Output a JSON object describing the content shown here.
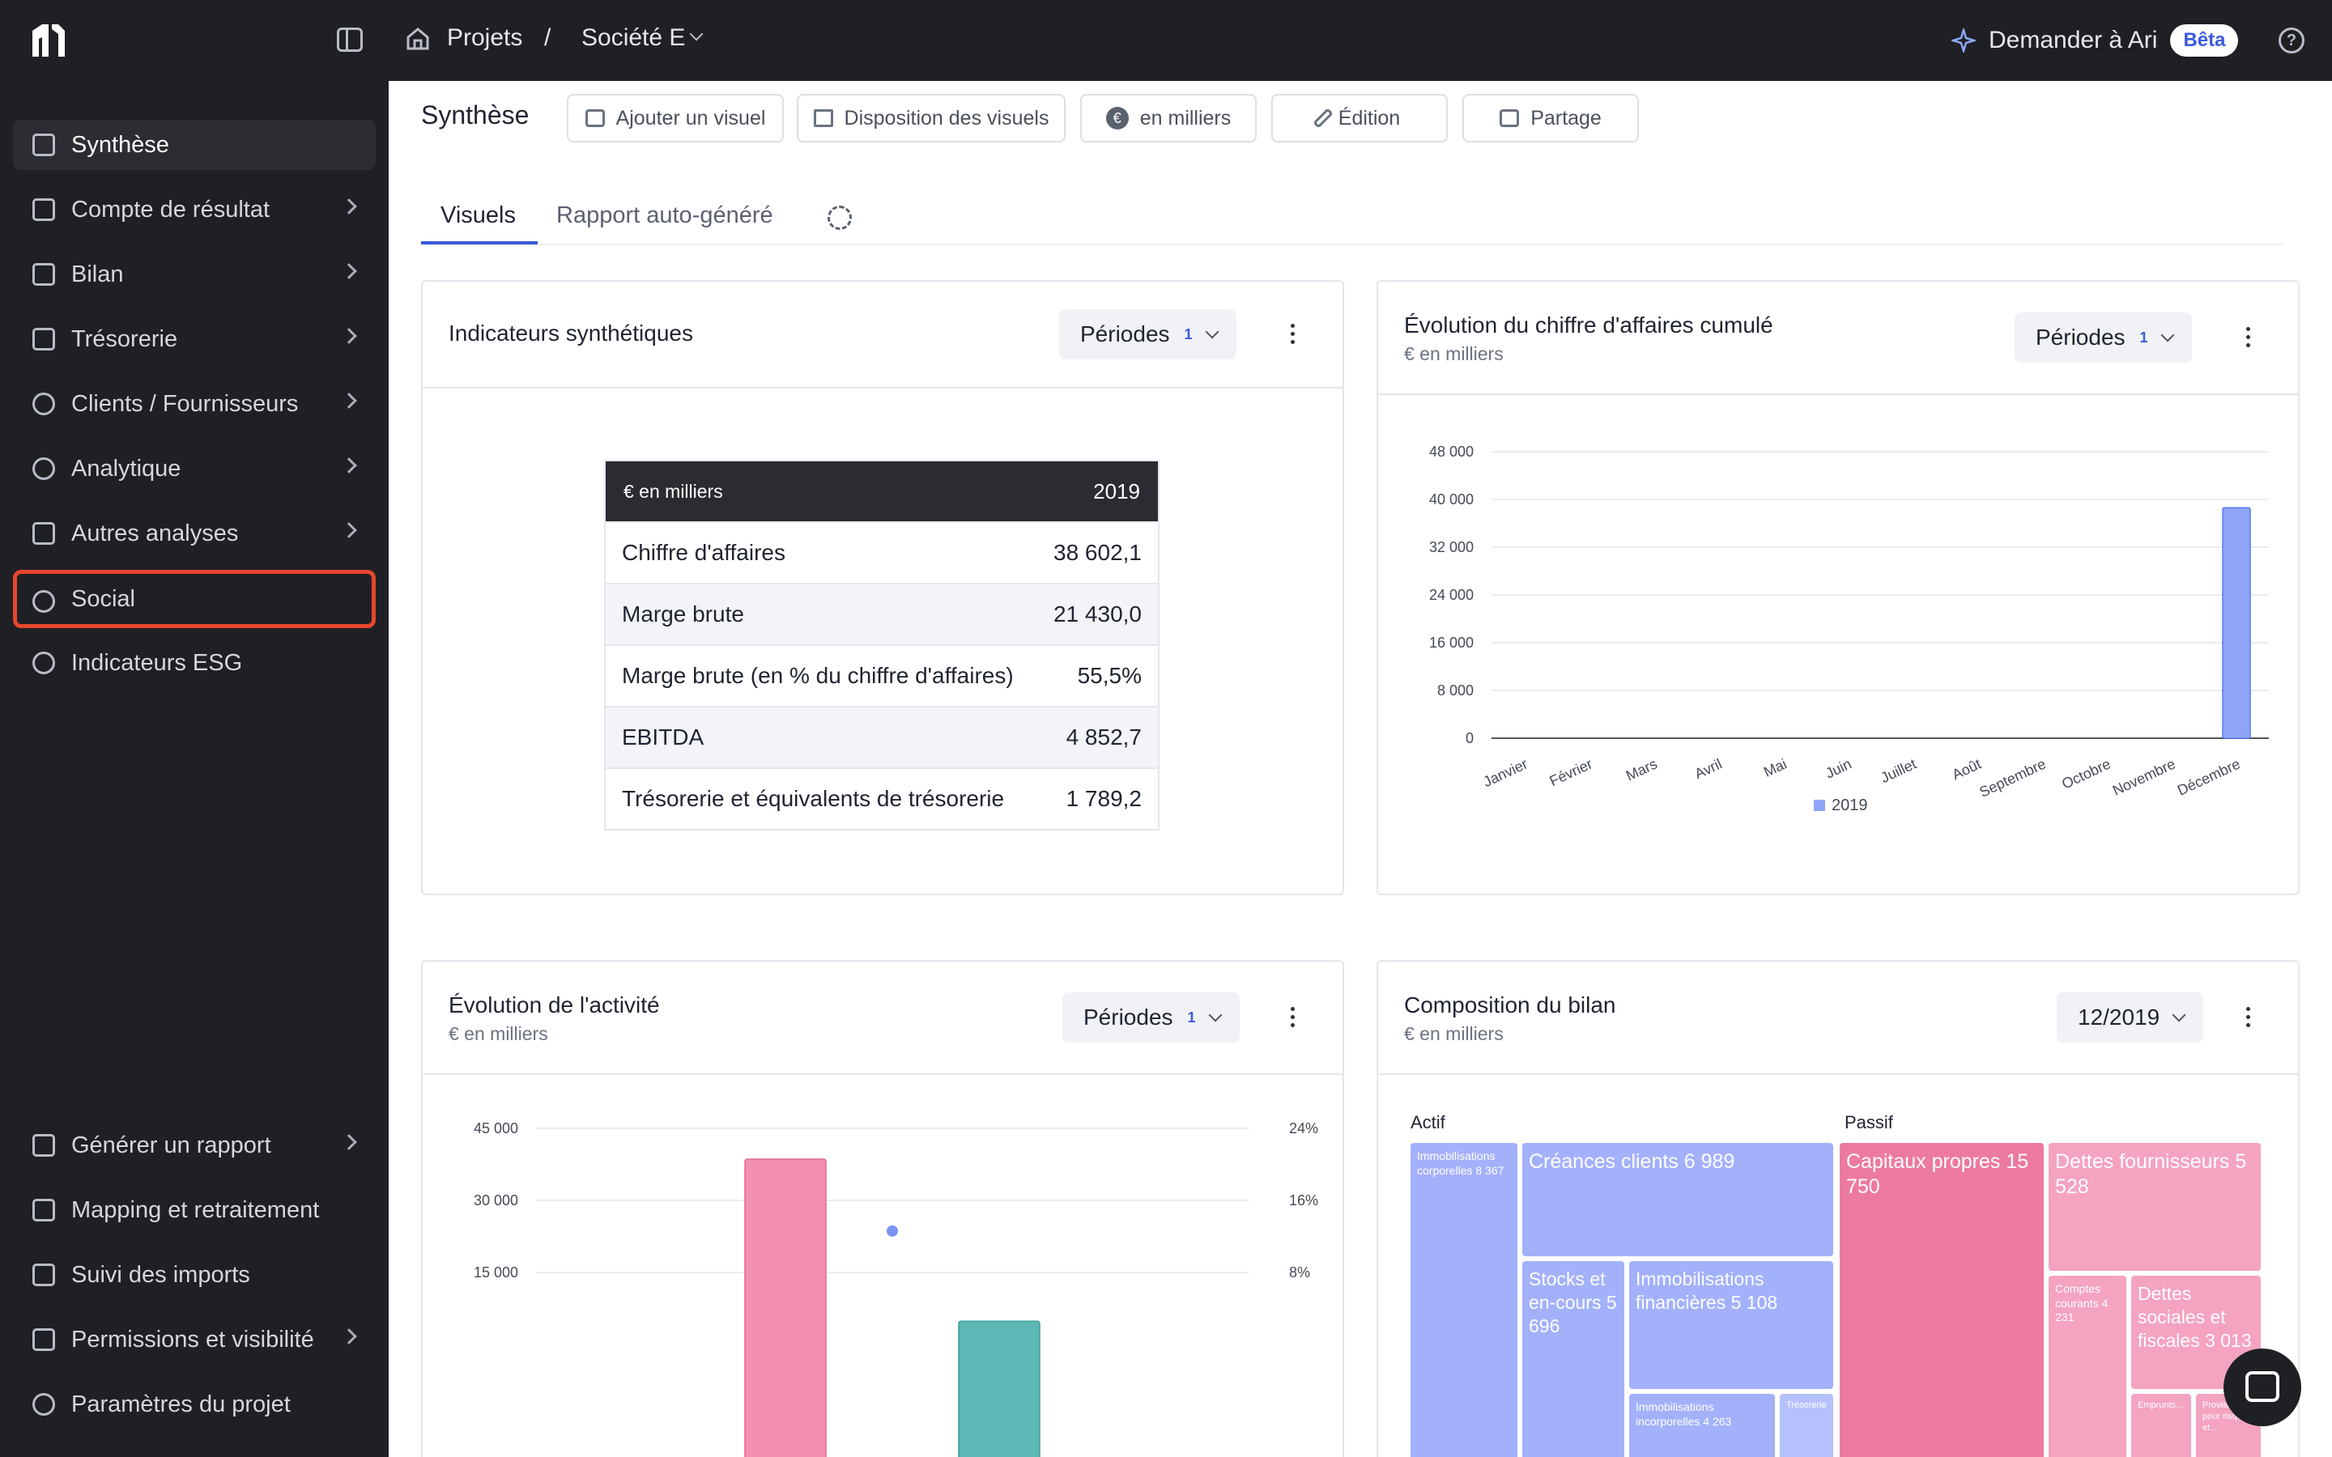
{
  "topbar": {
    "breadcrumb_projects": "Projets",
    "breadcrumb_sep": "/",
    "breadcrumb_company": "Société E",
    "ask_label": "Demander à Ari",
    "beta_badge": "Bêta"
  },
  "sidebar": {
    "items": [
      {
        "label": "Synthèse",
        "icon": "presentation-icon",
        "active": true,
        "chevron": false
      },
      {
        "label": "Compte de résultat",
        "icon": "bar-chart-icon",
        "chevron": true
      },
      {
        "label": "Bilan",
        "icon": "book-icon",
        "chevron": true
      },
      {
        "label": "Trésorerie",
        "icon": "cash-icon",
        "chevron": true
      },
      {
        "label": "Clients / Fournisseurs",
        "icon": "users-icon",
        "chevron": true
      },
      {
        "label": "Analytique",
        "icon": "pie-icon",
        "chevron": true
      },
      {
        "label": "Autres analyses",
        "icon": "scale-icon",
        "chevron": true
      },
      {
        "label": "Social",
        "icon": "people-icon",
        "chevron": false,
        "highlighted": true
      },
      {
        "label": "Indicateurs ESG",
        "icon": "globe-icon",
        "chevron": false
      }
    ],
    "bottom_items": [
      {
        "label": "Générer un rapport",
        "icon": "report-icon",
        "chevron": true
      },
      {
        "label": "Mapping et retraitement",
        "icon": "mapping-icon",
        "chevron": false
      },
      {
        "label": "Suivi des imports",
        "icon": "folder-icon",
        "chevron": false
      },
      {
        "label": "Permissions et visibilité",
        "icon": "lock-icon",
        "chevron": true
      },
      {
        "label": "Paramètres du projet",
        "icon": "gear-icon",
        "chevron": false
      }
    ]
  },
  "main": {
    "title": "Synthèse",
    "toolbar": {
      "add_visual": "Ajouter un visuel",
      "layout": "Disposition des visuels",
      "unit": "en milliers",
      "unit_symbol": "€",
      "edit": "Édition",
      "share": "Partage"
    },
    "tabs": [
      "Visuels",
      "Rapport auto-généré"
    ]
  },
  "cards": {
    "indicators": {
      "title": "Indicateurs synthétiques",
      "periods_label": "Périodes",
      "periods_count": "1",
      "table": {
        "header_label": "€ en milliers",
        "header_year": "2019",
        "rows": [
          {
            "label": "Chiffre d'affaires",
            "value": "38 602,1"
          },
          {
            "label": "Marge brute",
            "value": "21 430,0"
          },
          {
            "label": "Marge brute (en % du chiffre d'affaires)",
            "value": "55,5%"
          },
          {
            "label": "EBITDA",
            "value": "4 852,7"
          },
          {
            "label": "Trésorerie et équivalents de trésorerie",
            "value": "1 789,2"
          }
        ]
      }
    },
    "revenue": {
      "title": "Évolution du chiffre d'affaires cumulé",
      "subtitle": "€ en milliers",
      "periods_label": "Périodes",
      "periods_count": "1"
    },
    "activity": {
      "title": "Évolution de l'activité",
      "subtitle": "€ en milliers",
      "periods_label": "Périodes",
      "periods_count": "1"
    },
    "balance": {
      "title": "Composition du bilan",
      "subtitle": "€ en milliers",
      "period": "12/2019",
      "actif_label": "Actif",
      "passif_label": "Passif",
      "blocks": {
        "immo_corp": "Immobilisations corporelles 8 367",
        "creances": "Créances clients 6 989",
        "stocks": "Stocks et en-cours 5 696",
        "immo_fin": "Immobilisations financières 5 108",
        "immo_incorp": "Immobilisations incorporelles 4 263",
        "treso": "Trésorerie",
        "capitaux": "Capitaux propres 15 750",
        "dettes_fourn": "Dettes fournisseurs 5 528",
        "comptes_courants": "Comptes courants 4 231",
        "dettes_soc": "Dettes sociales et fiscales 3 013",
        "emprunts": "Emprunts...",
        "provisions": "Provisions pour risques et..."
      }
    }
  },
  "chart_data": [
    {
      "type": "bar",
      "title": "Évolution du chiffre d'affaires cumulé",
      "subtitle": "€ en milliers",
      "categories": [
        "Janvier",
        "Février",
        "Mars",
        "Avril",
        "Mai",
        "Juin",
        "Juillet",
        "Août",
        "Septembre",
        "Octobre",
        "Novembre",
        "Décembre"
      ],
      "series": [
        {
          "name": "2019",
          "values": [
            0,
            0,
            0,
            0,
            0,
            0,
            0,
            0,
            0,
            0,
            0,
            38602
          ],
          "color": "#8fa6f7"
        }
      ],
      "yticks": [
        "0",
        "8 000",
        "16 000",
        "24 000",
        "32 000",
        "40 000",
        "48 000"
      ],
      "ylim": [
        0,
        48000
      ],
      "grid": true,
      "legend": "bottom"
    },
    {
      "type": "bar",
      "title": "Évolution de l'activité",
      "subtitle": "€ en milliers",
      "yticks_left": [
        "15 000",
        "30 000",
        "45 000"
      ],
      "yticks_right": [
        "8%",
        "16%",
        "24%"
      ],
      "ylim": [
        0,
        45000
      ],
      "y2lim": [
        0,
        24
      ],
      "bars": [
        {
          "value": 38602,
          "color": "#f28fb1"
        },
        {
          "value": 4853,
          "color": "#5bb8b4"
        }
      ],
      "point": {
        "value": 12.6,
        "color": "#7b93f2"
      }
    },
    {
      "type": "treemap",
      "title": "Composition du bilan",
      "items": [
        {
          "name": "Immobilisations corporelles",
          "value": 8367,
          "group": "Actif"
        },
        {
          "name": "Créances clients",
          "value": 6989,
          "group": "Actif"
        },
        {
          "name": "Stocks et en-cours",
          "value": 5696,
          "group": "Actif"
        },
        {
          "name": "Immobilisations financières",
          "value": 5108,
          "group": "Actif"
        },
        {
          "name": "Immobilisations incorporelles",
          "value": 4263,
          "group": "Actif"
        },
        {
          "name": "Capitaux propres",
          "value": 15750,
          "group": "Passif"
        },
        {
          "name": "Dettes fournisseurs",
          "value": 5528,
          "group": "Passif"
        },
        {
          "name": "Comptes courants",
          "value": 4231,
          "group": "Passif"
        },
        {
          "name": "Dettes sociales et fiscales",
          "value": 3013,
          "group": "Passif"
        }
      ]
    }
  ]
}
